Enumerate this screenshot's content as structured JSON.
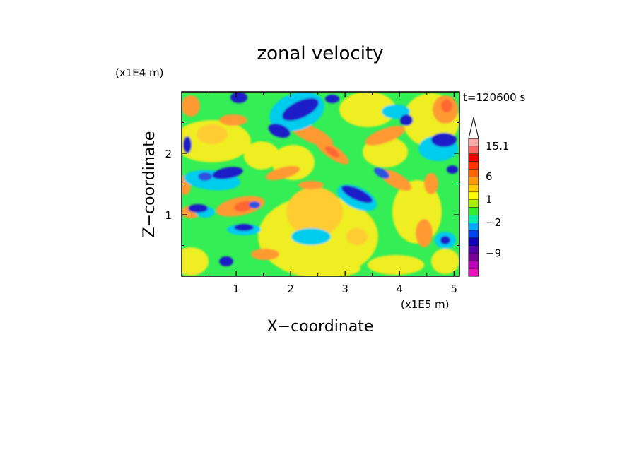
{
  "chart_data": {
    "type": "heatmap",
    "title": "zonal velocity",
    "xlabel": "X−coordinate",
    "ylabel": "Z−coordinate",
    "x_unit": "(x1E5 m)",
    "y_unit": "(x1E4 m)",
    "time_label": "t=120600 s",
    "xlim": [
      0,
      5.1
    ],
    "ylim": [
      0,
      3.0
    ],
    "x_ticks": [
      1,
      2,
      3,
      4,
      5
    ],
    "x_tick_labels": [
      "1",
      "2",
      "3",
      "4",
      "5"
    ],
    "y_ticks": [
      1,
      2
    ],
    "y_tick_labels": [
      "1",
      "2"
    ],
    "colorbar": {
      "levels_bottom_to_top": [
        {
          "color": "#ee11bb"
        },
        {
          "color": "#bb00bb"
        },
        {
          "color": "#770099"
        },
        {
          "color": "#5500aa"
        },
        {
          "color": "#1100bb"
        },
        {
          "color": "#0044ee"
        },
        {
          "color": "#00aaff"
        },
        {
          "color": "#00eeaa"
        },
        {
          "color": "#33ee33"
        },
        {
          "color": "#aaee00"
        },
        {
          "color": "#ffff00"
        },
        {
          "color": "#ffcc00"
        },
        {
          "color": "#ff9900"
        },
        {
          "color": "#ff6600"
        },
        {
          "color": "#ff3300"
        },
        {
          "color": "#ee0000"
        },
        {
          "color": "#ff6666"
        },
        {
          "color": "#ffaaaa"
        }
      ],
      "tick_labels": [
        {
          "label": "−9",
          "level_edge": 3
        },
        {
          "label": "−2",
          "level_edge": 7
        },
        {
          "label": "1",
          "level_edge": 10
        },
        {
          "label": "6",
          "level_edge": 13
        },
        {
          "label": "15.1",
          "level_edge": 17
        }
      ],
      "extend_max": true
    },
    "field_colors": {
      "deep_blue": "#1a1ac8",
      "blue": "#2a52e0",
      "cyan": "#00ccee",
      "green": "#33ee55",
      "yellow": "#eeee22",
      "light_orange": "#ffcc33",
      "orange": "#ff9933",
      "red_orange": "#ff6633"
    }
  }
}
